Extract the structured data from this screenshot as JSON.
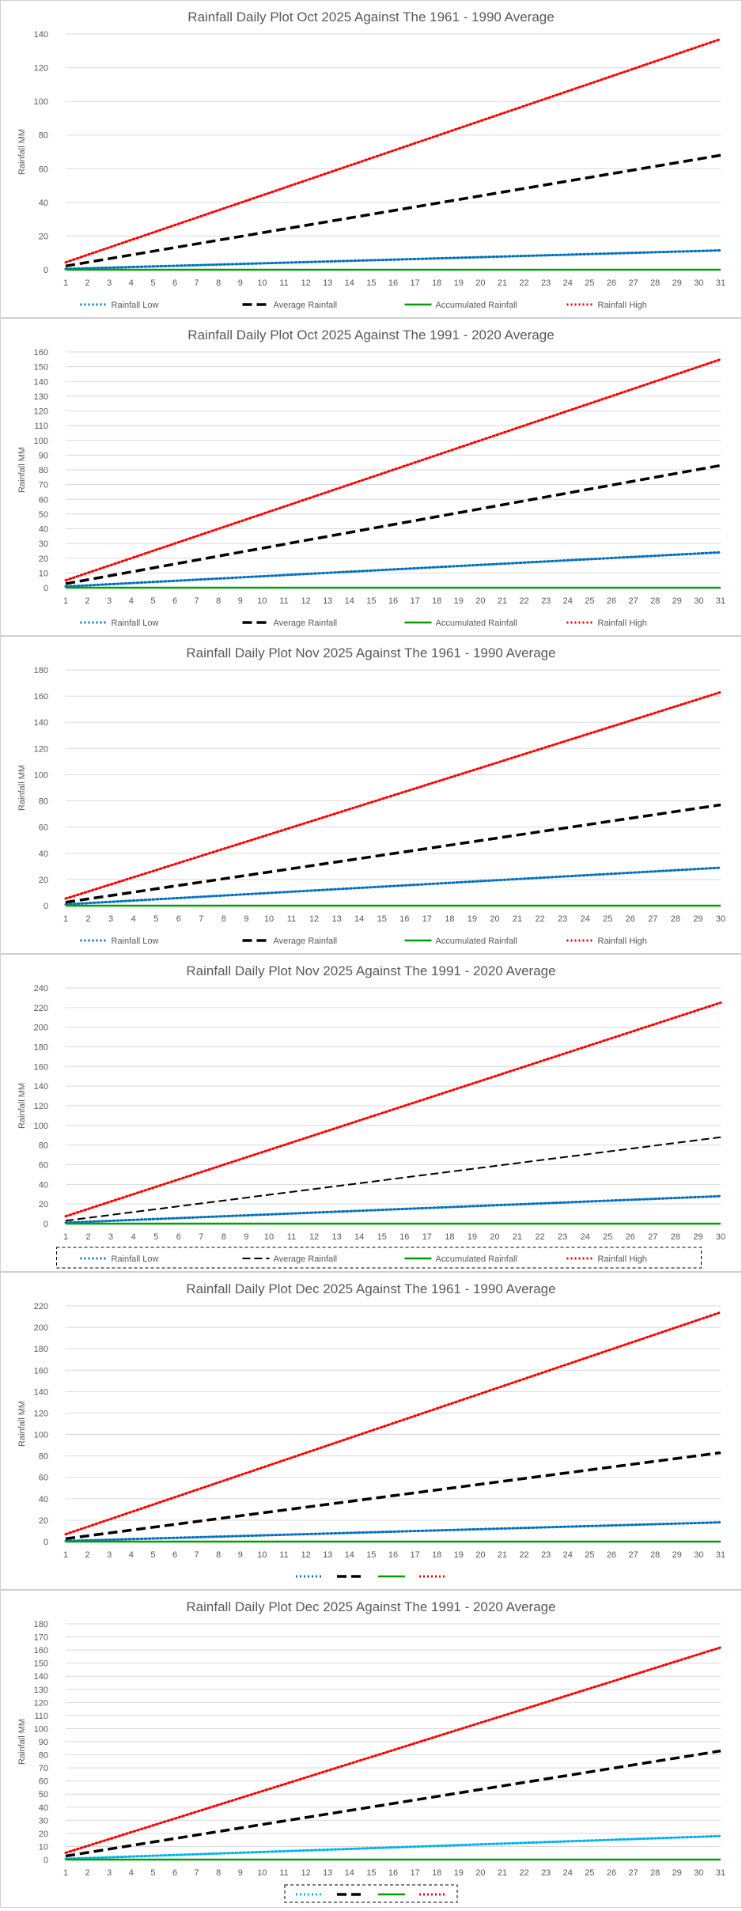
{
  "colors": {
    "rainfall_low": "#0070c0",
    "rainfall_low_alt": "#00b0f0",
    "average_rainfall": "#000000",
    "accumulated_rainfall": "#00a000",
    "rainfall_high": "#ff0000",
    "gridline": "#d9d9d9",
    "text": "#595959"
  },
  "chart_data": [
    {
      "type": "line",
      "title": "Rainfall Daily Plot Oct 2025 Against The 1961 - 1990 Average",
      "ylabel": "Rainfall MM",
      "xlabel": "",
      "x_start": 1,
      "x_end": 31,
      "ylim": [
        0,
        140
      ],
      "ytick_step": 20,
      "grid": true,
      "legend_position": "bottom",
      "legend_boxed": false,
      "show_legend_text": true,
      "series": [
        {
          "name": "Rainfall Low",
          "start": 0.5,
          "end": 11.5,
          "style": "dotted",
          "color": "#0070c0"
        },
        {
          "name": "Average Rainfall",
          "start": 2.2,
          "end": 68,
          "style": "dashed",
          "color": "#000000"
        },
        {
          "name": "Accumulated Rainfall",
          "start": 0,
          "end": 0,
          "style": "solid",
          "color": "#00a000"
        },
        {
          "name": "Rainfall High",
          "start": 4.4,
          "end": 137,
          "style": "dotted",
          "color": "#ff0000"
        }
      ]
    },
    {
      "type": "line",
      "title": "Rainfall Daily Plot Oct 2025 Against The 1991 - 2020 Average",
      "ylabel": "Rainfall MM",
      "xlabel": "",
      "x_start": 1,
      "x_end": 31,
      "ylim": [
        0,
        160
      ],
      "ytick_step": 10,
      "grid": true,
      "legend_position": "bottom",
      "legend_boxed": false,
      "show_legend_text": true,
      "series": [
        {
          "name": "Rainfall Low",
          "start": 0.8,
          "end": 24,
          "style": "dotted",
          "color": "#0070c0"
        },
        {
          "name": "Average Rainfall",
          "start": 2.7,
          "end": 83,
          "style": "dashed",
          "color": "#000000"
        },
        {
          "name": "Accumulated Rainfall",
          "start": 0,
          "end": 0,
          "style": "solid",
          "color": "#00a000"
        },
        {
          "name": "Rainfall High",
          "start": 5,
          "end": 155,
          "style": "dotted",
          "color": "#ff0000"
        }
      ]
    },
    {
      "type": "line",
      "title": "Rainfall Daily Plot Nov 2025 Against The 1961 - 1990 Average",
      "ylabel": "Rainfall MM",
      "xlabel": "",
      "x_start": 1,
      "x_end": 30,
      "ylim": [
        0,
        180
      ],
      "ytick_step": 20,
      "grid": true,
      "legend_position": "bottom",
      "legend_boxed": false,
      "show_legend_text": true,
      "series": [
        {
          "name": "Rainfall Low",
          "start": 1,
          "end": 29,
          "style": "dotted",
          "color": "#0070c0"
        },
        {
          "name": "Average Rainfall",
          "start": 2.6,
          "end": 77,
          "style": "dashed",
          "color": "#000000"
        },
        {
          "name": "Accumulated Rainfall",
          "start": 0,
          "end": 0,
          "style": "solid",
          "color": "#00a000"
        },
        {
          "name": "Rainfall High",
          "start": 5.4,
          "end": 163,
          "style": "dotted",
          "color": "#ff0000"
        }
      ]
    },
    {
      "type": "line",
      "title": "Rainfall Daily Plot Nov 2025 Against The 1991 - 2020 Average",
      "ylabel": "Rainfall MM",
      "xlabel": "",
      "x_start": 1,
      "x_end": 30,
      "ylim": [
        0,
        240
      ],
      "ytick_step": 20,
      "grid": true,
      "legend_position": "bottom",
      "legend_boxed": true,
      "show_legend_text": true,
      "series": [
        {
          "name": "Rainfall Low",
          "start": 1,
          "end": 28,
          "style": "dotted",
          "color": "#0070c0"
        },
        {
          "name": "Average Rainfall",
          "start": 3,
          "end": 88,
          "style": "dashed-thin",
          "color": "#000000"
        },
        {
          "name": "Accumulated Rainfall",
          "start": 0,
          "end": 0,
          "style": "solid",
          "color": "#00a000"
        },
        {
          "name": "Rainfall High",
          "start": 7.5,
          "end": 225,
          "style": "dotted",
          "color": "#ff0000"
        }
      ]
    },
    {
      "type": "line",
      "title": "Rainfall Daily Plot Dec 2025 Against The 1961 - 1990 Average",
      "ylabel": "Rainfall MM",
      "xlabel": "",
      "x_start": 1,
      "x_end": 31,
      "ylim": [
        0,
        220
      ],
      "ytick_step": 20,
      "grid": true,
      "legend_position": "bottom",
      "legend_boxed": false,
      "show_legend_text": false,
      "series": [
        {
          "name": "",
          "start": 0.6,
          "end": 18,
          "style": "dotted",
          "color": "#0070c0"
        },
        {
          "name": "",
          "start": 2.7,
          "end": 83,
          "style": "dashed",
          "color": "#000000"
        },
        {
          "name": "",
          "start": 0,
          "end": 0,
          "style": "solid",
          "color": "#00a000"
        },
        {
          "name": "",
          "start": 6.9,
          "end": 214,
          "style": "dotted",
          "color": "#ff0000"
        }
      ]
    },
    {
      "type": "line",
      "title": "Rainfall Daily Plot Dec 2025 Against The 1991 - 2020 Average",
      "ylabel": "Rainfall MM",
      "xlabel": "",
      "x_start": 1,
      "x_end": 31,
      "ylim": [
        0,
        180
      ],
      "ytick_step": 10,
      "grid": true,
      "legend_position": "bottom",
      "legend_boxed": true,
      "show_legend_text": false,
      "series": [
        {
          "name": "",
          "start": 0.6,
          "end": 18,
          "style": "dotted",
          "color": "#00b0f0"
        },
        {
          "name": "",
          "start": 2.7,
          "end": 83,
          "style": "dashed",
          "color": "#000000"
        },
        {
          "name": "",
          "start": 0,
          "end": 0,
          "style": "solid",
          "color": "#00a000"
        },
        {
          "name": "",
          "start": 5.2,
          "end": 162,
          "style": "dotted",
          "color": "#ff0000"
        }
      ]
    }
  ]
}
